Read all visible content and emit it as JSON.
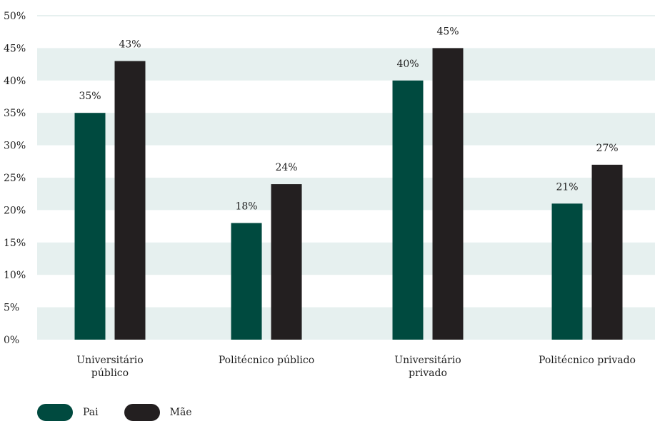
{
  "chart_data": {
    "type": "bar",
    "categories": [
      [
        "Universitário",
        "público"
      ],
      [
        "Politécnico público"
      ],
      [
        "Universitário",
        "privado"
      ],
      [
        "Politécnico privado"
      ]
    ],
    "series": [
      {
        "name": "Pai",
        "color": "#004a3f",
        "values": [
          35,
          18,
          40,
          21
        ],
        "labels": [
          "35%",
          "18%",
          "40%",
          "21%"
        ]
      },
      {
        "name": "Mãe",
        "color": "#231f20",
        "values": [
          43,
          24,
          45,
          27
        ],
        "labels": [
          "43%",
          "24%",
          "45%",
          "27%"
        ]
      }
    ],
    "ylim": [
      0,
      50
    ],
    "yticks": [
      "0%",
      "5%",
      "10%",
      "15%",
      "20%",
      "25%",
      "30%",
      "35%",
      "40%",
      "45%",
      "50%"
    ],
    "band_color": "#e6f0ef",
    "legend_position": "bottom-left"
  }
}
